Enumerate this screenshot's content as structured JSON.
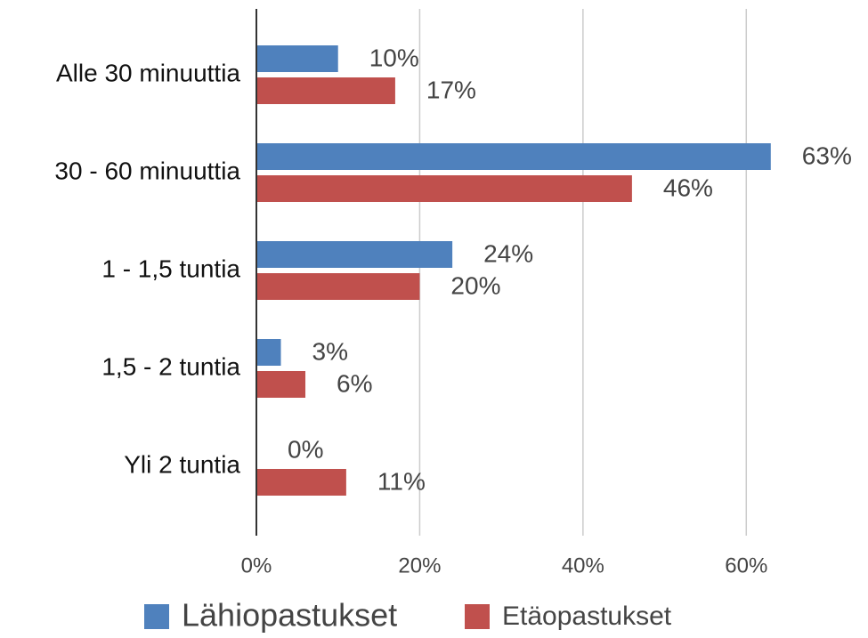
{
  "chart_data": {
    "type": "hbar",
    "categories": [
      "Alle 30 minuuttia",
      "30 - 60 minuuttia",
      "1 - 1,5 tuntia",
      "1,5 - 2 tuntia",
      "Yli 2 tuntia"
    ],
    "series": [
      {
        "name": "Lähiopastukset",
        "color": "#4f81bd",
        "values": [
          10,
          63,
          24,
          3,
          0
        ],
        "value_labels": [
          "10%",
          "63%",
          "24%",
          "3%",
          "0%"
        ]
      },
      {
        "name": "Etäopastukset",
        "color": "#c0504d",
        "values": [
          17,
          46,
          20,
          6,
          11
        ],
        "value_labels": [
          "17%",
          "46%",
          "20%",
          "6%",
          "11%"
        ]
      }
    ],
    "xlim": [
      0,
      70
    ],
    "xticks": [
      {
        "value": 0,
        "label": "0%"
      },
      {
        "value": 20,
        "label": "20%"
      },
      {
        "value": 40,
        "label": "40%"
      },
      {
        "value": 60,
        "label": "60%"
      }
    ],
    "grid": true,
    "legend": "bottom"
  }
}
